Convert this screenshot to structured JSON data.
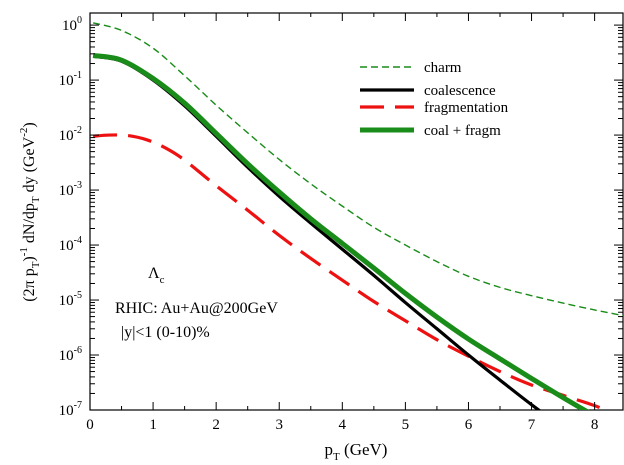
{
  "chart_data": {
    "type": "line",
    "xlabel": "p_T (GeV)",
    "ylabel": "(2π p_T)^-1 dN/dp_T dy (GeV^-2)",
    "xlim": [
      0,
      8.45
    ],
    "ylim_log10": [
      -7,
      0.22
    ],
    "yscale": "log",
    "grid": false,
    "legend_position": "top-right",
    "x_ticks": [
      0,
      1,
      2,
      3,
      4,
      5,
      6,
      7,
      8
    ],
    "y_ticks": [
      {
        "base": "10",
        "exp": "0",
        "value": 1
      },
      {
        "base": "10",
        "exp": "-1",
        "value": 0.1
      },
      {
        "base": "10",
        "exp": "-2",
        "value": 0.01
      },
      {
        "base": "10",
        "exp": "-3",
        "value": 0.001
      },
      {
        "base": "10",
        "exp": "-4",
        "value": 0.0001
      },
      {
        "base": "10",
        "exp": "-5",
        "value": 1e-05
      },
      {
        "base": "10",
        "exp": "-6",
        "value": 1e-06
      },
      {
        "base": "10",
        "exp": "-7",
        "value": 1e-07
      }
    ],
    "annotations": {
      "particle": "Λ",
      "particle_sub": "c",
      "system": "RHIC: Au+Au@200GeV",
      "cuts": "|y|<1 (0-10)%"
    },
    "series": [
      {
        "name": "charm",
        "color": "#1a8c1a",
        "style": "dashed-thin",
        "x": [
          0.05,
          0.5,
          1.0,
          1.5,
          2.0,
          2.5,
          3.0,
          3.5,
          4.0,
          4.5,
          5.0,
          5.5,
          6.0,
          6.5,
          7.0,
          7.5,
          8.0,
          8.45
        ],
        "y": [
          1.1,
          0.8,
          0.38,
          0.12,
          0.035,
          0.011,
          0.0036,
          0.0013,
          0.00051,
          0.00021,
          0.0001,
          5e-05,
          2.7e-05,
          1.7e-05,
          1.2e-05,
          8.8e-06,
          6.6e-06,
          5.2e-06
        ]
      },
      {
        "name": "coalescence",
        "color": "#000000",
        "style": "solid",
        "x": [
          0.05,
          0.5,
          1.0,
          1.5,
          2.0,
          2.5,
          3.0,
          3.5,
          4.0,
          4.5,
          5.0,
          5.5,
          6.0,
          6.5,
          7.0,
          7.5,
          8.0,
          8.45
        ],
        "y": [
          0.27,
          0.22,
          0.1,
          0.034,
          0.0095,
          0.0026,
          0.00077,
          0.00025,
          8.4e-05,
          2.8e-05,
          9e-06,
          3e-06,
          1e-06,
          3.5e-07,
          1.25e-07,
          4.8e-08,
          2e-08,
          1e-08
        ]
      },
      {
        "name": "fragmentation",
        "color": "#ee1111",
        "style": "dashed-thick",
        "x": [
          0.05,
          0.3,
          0.6,
          0.9,
          1.2,
          1.5,
          2.0,
          2.5,
          3.0,
          3.5,
          4.0,
          4.5,
          5.0,
          5.5,
          6.0,
          6.5,
          7.0,
          7.5,
          8.0,
          8.2
        ],
        "y": [
          0.0095,
          0.01,
          0.0098,
          0.0082,
          0.0058,
          0.0035,
          0.0012,
          0.00043,
          0.00015,
          5.7e-05,
          2.3e-05,
          9.4e-06,
          4.2e-06,
          1.9e-06,
          9.5e-07,
          5e-07,
          2.85e-07,
          1.85e-07,
          1.2e-07,
          9.5e-08
        ]
      },
      {
        "name": "coal + fragm",
        "color": "#1a8c1a",
        "style": "solid-thick",
        "x": [
          0.05,
          0.5,
          1.0,
          1.5,
          2.0,
          2.5,
          3.0,
          3.5,
          4.0,
          4.5,
          5.0,
          5.5,
          6.0,
          6.5,
          7.0,
          7.5,
          8.0,
          8.45
        ],
        "y": [
          0.28,
          0.23,
          0.107,
          0.038,
          0.0107,
          0.003,
          0.00092,
          0.0003,
          0.000107,
          3.8e-05,
          1.32e-05,
          4.9e-06,
          1.95e-06,
          8.5e-07,
          3.75e-07,
          1.68e-07,
          7.8e-08,
          4e-08
        ]
      }
    ]
  }
}
